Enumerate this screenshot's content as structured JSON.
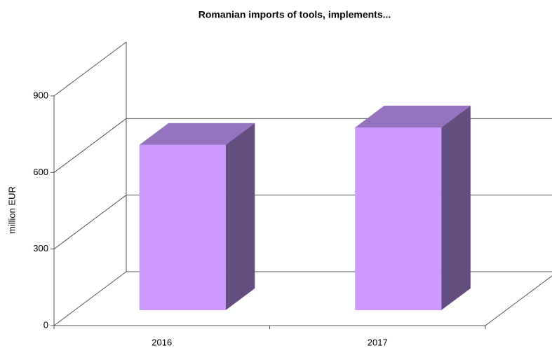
{
  "chart_data": {
    "type": "bar3d",
    "title": "Romanian imports of tools, implements...",
    "y_label": "million EUR",
    "categories": [
      "2016",
      "2017"
    ],
    "values": [
      648,
      716
    ],
    "color": "#cc99ff",
    "top_color": "#9673bf",
    "side_color": "#644e80",
    "ylim": [
      0,
      900
    ],
    "yticks": [
      0,
      300,
      600,
      900
    ],
    "grid": true
  }
}
